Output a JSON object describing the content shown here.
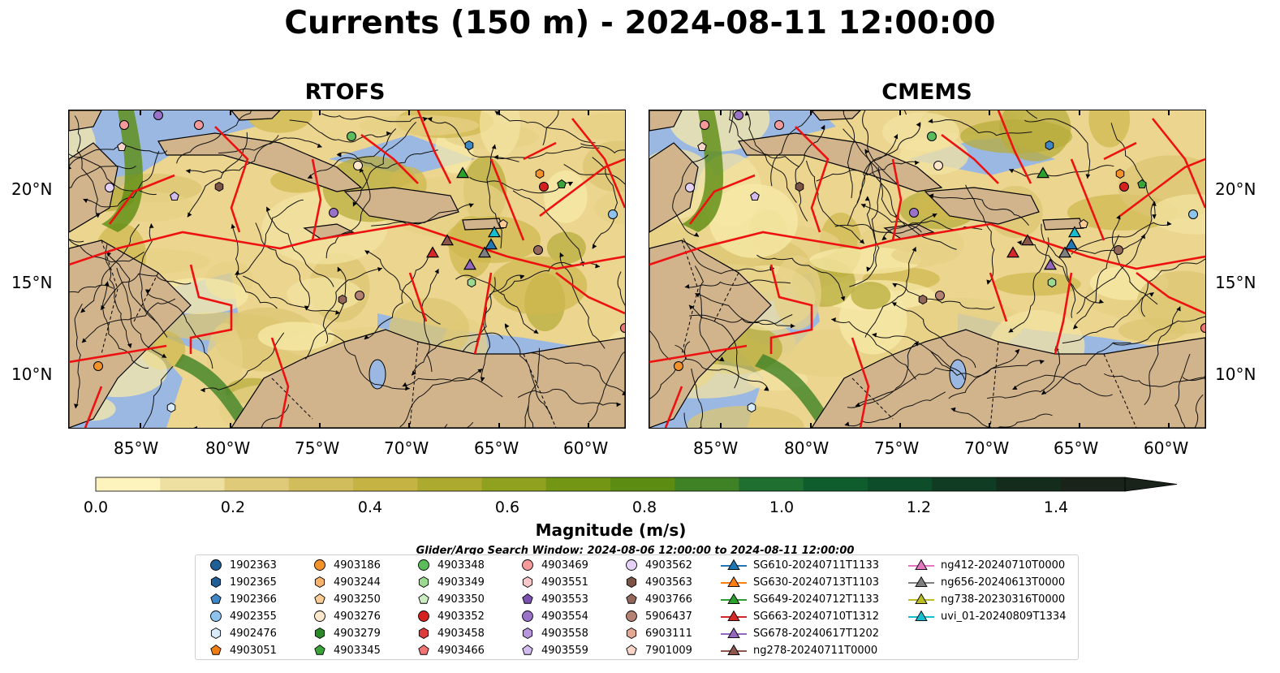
{
  "title": "Currents (150 m) - 2024-08-11 12:00:00",
  "panels": [
    {
      "title": "RTOFS"
    },
    {
      "title": "CMEMS"
    }
  ],
  "lat_labels": [
    "20°N",
    "15°N",
    "10°N"
  ],
  "lon_labels": [
    "85°W",
    "80°W",
    "75°W",
    "70°W",
    "65°W",
    "60°W"
  ],
  "colorbar": {
    "label": "Magnitude (m/s)",
    "ticks": [
      "0.0",
      "0.2",
      "0.4",
      "0.6",
      "0.8",
      "1.0",
      "1.2",
      "1.4"
    ],
    "colors": [
      "#fdf4bd",
      "#ede0a0",
      "#dfca7a",
      "#d2bd5c",
      "#c5b444",
      "#adab2f",
      "#8fa11e",
      "#739714",
      "#5c8c12",
      "#3f8226",
      "#1f6f30",
      "#0f5d2c",
      "#0e4d29",
      "#0f3c22",
      "#142c1c",
      "#1a231a"
    ]
  },
  "search_window": "Glider/Argo Search Window: 2024-08-06 12:00:00 to 2024-08-11 12:00:00",
  "legend": [
    {
      "label": "1902363",
      "shape": "circle",
      "color": "#1f5f96"
    },
    {
      "label": "1902365",
      "shape": "hexagon",
      "color": "#1f5f96"
    },
    {
      "label": "1902366",
      "shape": "pentagon",
      "color": "#3f88c5"
    },
    {
      "label": "4902355",
      "shape": "circle",
      "color": "#8ec3ee"
    },
    {
      "label": "4902476",
      "shape": "hexagon",
      "color": "#d8ecfb"
    },
    {
      "label": "4903051",
      "shape": "pentagon",
      "color": "#f07d11"
    },
    {
      "label": "4903186",
      "shape": "circle",
      "color": "#f3922a"
    },
    {
      "label": "4903244",
      "shape": "hexagon",
      "color": "#f7b26b"
    },
    {
      "label": "4903250",
      "shape": "pentagon",
      "color": "#fbcd96"
    },
    {
      "label": "4903276",
      "shape": "circle",
      "color": "#fde7cc"
    },
    {
      "label": "4903279",
      "shape": "hexagon",
      "color": "#2a8a2a"
    },
    {
      "label": "4903345",
      "shape": "pentagon",
      "color": "#3aa33a"
    },
    {
      "label": "4903348",
      "shape": "circle",
      "color": "#5cbc5c"
    },
    {
      "label": "4903349",
      "shape": "hexagon",
      "color": "#9ad98f"
    },
    {
      "label": "4903350",
      "shape": "pentagon",
      "color": "#cdeec4"
    },
    {
      "label": "4903352",
      "shape": "circle",
      "color": "#d62020"
    },
    {
      "label": "4903458",
      "shape": "hexagon",
      "color": "#dd3c3c"
    },
    {
      "label": "4903466",
      "shape": "pentagon",
      "color": "#f07474"
    },
    {
      "label": "4903469",
      "shape": "circle",
      "color": "#f49a9a"
    },
    {
      "label": "4903551",
      "shape": "hexagon",
      "color": "#f9c7c7"
    },
    {
      "label": "4903553",
      "shape": "pentagon",
      "color": "#7b52b0"
    },
    {
      "label": "4903554",
      "shape": "circle",
      "color": "#9a73c8"
    },
    {
      "label": "4903558",
      "shape": "hexagon",
      "color": "#b796dc"
    },
    {
      "label": "4903559",
      "shape": "pentagon",
      "color": "#d2bbee"
    },
    {
      "label": "4903562",
      "shape": "circle",
      "color": "#e3d1f7"
    },
    {
      "label": "4903563",
      "shape": "hexagon",
      "color": "#7b5446"
    },
    {
      "label": "4903766",
      "shape": "pentagon",
      "color": "#93685a"
    },
    {
      "label": "5906437",
      "shape": "circle",
      "color": "#b48272"
    },
    {
      "label": "6903111",
      "shape": "hexagon",
      "color": "#e3a995"
    },
    {
      "label": "7901009",
      "shape": "pentagon",
      "color": "#f8d5c8"
    },
    {
      "label": "SG610-20240711T1133",
      "shape": "triangle",
      "color": "#1f77b4"
    },
    {
      "label": "SG630-20240713T1103",
      "shape": "triangle",
      "color": "#ff7f0e"
    },
    {
      "label": "SG649-20240712T1133",
      "shape": "triangle",
      "color": "#2ca02c"
    },
    {
      "label": "SG663-20240710T1312",
      "shape": "triangle",
      "color": "#d62728"
    },
    {
      "label": "SG678-20240617T1202",
      "shape": "triangle",
      "color": "#9467bd"
    },
    {
      "label": "ng278-20240711T0000",
      "shape": "triangle",
      "color": "#8c564b"
    },
    {
      "label": "ng412-20240710T0000",
      "shape": "triangle",
      "color": "#e377c2"
    },
    {
      "label": "ng656-20240613T0000",
      "shape": "triangle",
      "color": "#7f7f7f"
    },
    {
      "label": "ng738-20230316T0000",
      "shape": "triangle",
      "color": "#bcbd22"
    },
    {
      "label": "uvi_01-20240809T1334",
      "shape": "triangle",
      "color": "#17becf"
    }
  ]
}
